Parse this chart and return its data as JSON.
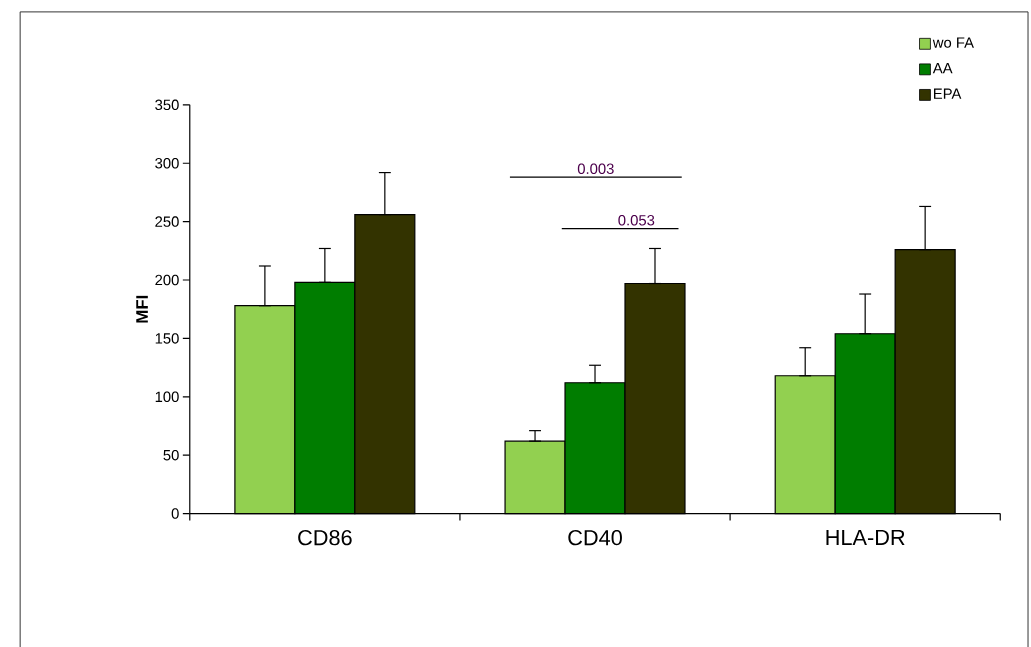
{
  "chart_data": {
    "type": "bar",
    "ylabel": "MFI",
    "categories": [
      "CD86",
      "CD40",
      "HLA-DR"
    ],
    "series": [
      {
        "name": "wo FA",
        "color": "#92d050",
        "values": [
          178,
          62,
          118
        ],
        "errors": [
          [
            178,
            212
          ],
          [
            62,
            71
          ],
          [
            118,
            142
          ]
        ]
      },
      {
        "name": "AA",
        "color": "#007d00",
        "values": [
          198,
          112,
          154
        ],
        "errors": [
          [
            198,
            227
          ],
          [
            112,
            127
          ],
          [
            154,
            188
          ]
        ]
      },
      {
        "name": "EPA",
        "color": "#333300",
        "values": [
          256,
          197,
          226
        ],
        "errors": [
          [
            256,
            292
          ],
          [
            197,
            227
          ],
          [
            226,
            263
          ]
        ]
      }
    ],
    "ylim": [
      0,
      350
    ],
    "yticks": [
      0,
      50,
      100,
      150,
      200,
      250,
      300,
      350
    ],
    "legend": "top right",
    "annotations": [
      "0.003",
      "0.053"
    ]
  }
}
